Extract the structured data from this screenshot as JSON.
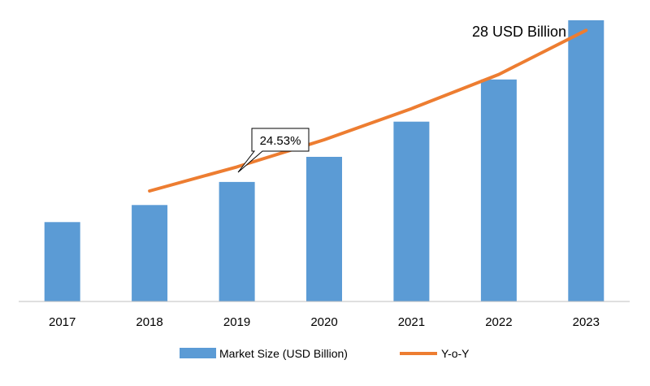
{
  "chart_data": {
    "type": "bar",
    "categories": [
      "2017",
      "2018",
      "2019",
      "2020",
      "2021",
      "2022",
      "2023"
    ],
    "series": [
      {
        "name": "Market Size (USD Billion)",
        "type": "bar",
        "values": [
          7.9,
          9.6,
          11.9,
          14.4,
          17.9,
          22.1,
          28.0
        ]
      },
      {
        "name": "Y-o-Y",
        "type": "line",
        "values": [
          null,
          11.0,
          13.4,
          16.1,
          19.2,
          22.6,
          27.0
        ]
      }
    ],
    "ylim": [
      0,
      28.8
    ],
    "annotations": [
      {
        "text": "28 USD Billion"
      },
      {
        "text": "24.53%"
      }
    ],
    "colors": {
      "bar": "#5b9bd5",
      "line": "#ed7d31",
      "axis": "#bfbfbf",
      "text": "#000000"
    },
    "legend_position": "bottom",
    "grid": false
  }
}
